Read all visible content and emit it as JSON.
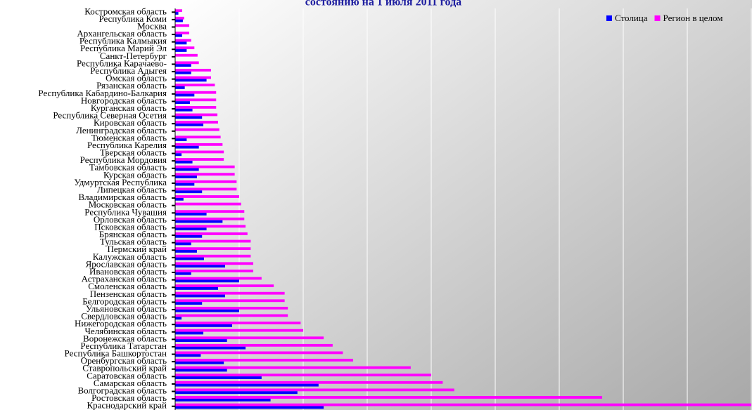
{
  "chart_data": {
    "type": "hbar",
    "title": "состоянию на 1 июля 2011 года",
    "categories": [
      "Костромская область",
      "Республика Коми",
      "Москва",
      "Архангельская область",
      "Республика Калмыкия",
      "Республика Марий Эл",
      "Санкт-Петербург",
      "Республика Карачаево-",
      "Республика Адыгея",
      "Омская область",
      "Рязанская область",
      "Республика Кабардино-Балкария",
      "Новгородская область",
      "Курганская область",
      "Республика Северная Осетия",
      "Кировская область",
      "Ленинградская область",
      "Тюменская область",
      "Республика Карелия",
      "Тверская область",
      "Республика Мордовия",
      "Тамбовская область",
      "Курская область",
      "Удмуртская Республика",
      "Липецкая область",
      "Владимирская область",
      "Московская область",
      "Республика Чувашия",
      "Орловская область",
      "Псковская область",
      "Брянская область",
      "Тульская область",
      "Пермский край",
      "Калужская область",
      "Ярославская область",
      "Ивановская область",
      "Астраханская область",
      "Смоленская область",
      "Пензенская область",
      "Белгородская область",
      "Ульяновская область",
      "Свердловская область",
      "Нижегородская область",
      "Челябинская область",
      "Воронежская область",
      "Республика Татарстан",
      "Республика Башкортостан",
      "Оренбургская область",
      "Ставропольский край",
      "Саратовская область",
      "Самарская область",
      "Волгоградская область",
      "Ростовская область",
      "Краснодарский край"
    ],
    "series": [
      {
        "name": "Столица",
        "color": "#0000ff",
        "values": [
          0.05,
          0.12,
          0,
          0.11,
          0.18,
          0.18,
          0,
          0.25,
          0.25,
          0.49,
          0.15,
          0.3,
          0.23,
          0.27,
          0.42,
          0.44,
          0,
          0.18,
          0.37,
          0.1,
          0.27,
          0.37,
          0.34,
          0.3,
          0.42,
          0.13,
          0,
          0.49,
          0.74,
          0.49,
          0.42,
          0.25,
          0.34,
          0.45,
          0.78,
          0.25,
          1.0,
          0.67,
          0.78,
          0.42,
          1.0,
          0.1,
          0.89,
          0.44,
          0.81,
          1.1,
          0.4,
          0.76,
          0.81,
          1.35,
          2.24,
          1.91,
          1.49,
          2.32
        ]
      },
      {
        "name": "Регион в целом",
        "color": "#ff00ff",
        "values": [
          0.11,
          0.14,
          0.22,
          0.22,
          0.25,
          0.3,
          0.35,
          0.37,
          0.56,
          0.56,
          0.62,
          0.64,
          0.64,
          0.64,
          0.66,
          0.67,
          0.69,
          0.71,
          0.74,
          0.76,
          0.76,
          0.93,
          0.93,
          0.96,
          0.96,
          1.0,
          1.03,
          1.08,
          1.08,
          1.1,
          1.13,
          1.18,
          1.18,
          1.18,
          1.22,
          1.22,
          1.35,
          1.54,
          1.71,
          1.71,
          1.76,
          1.76,
          1.96,
          2.0,
          2.32,
          2.46,
          2.62,
          2.78,
          3.68,
          4.0,
          4.18,
          4.36,
          6.67,
          9.0
        ]
      }
    ],
    "xlim": [
      0,
      9
    ],
    "xticks": [
      0,
      1,
      2,
      3,
      4,
      5,
      6,
      7,
      8,
      9
    ],
    "grid": true,
    "legend": "top-right"
  }
}
